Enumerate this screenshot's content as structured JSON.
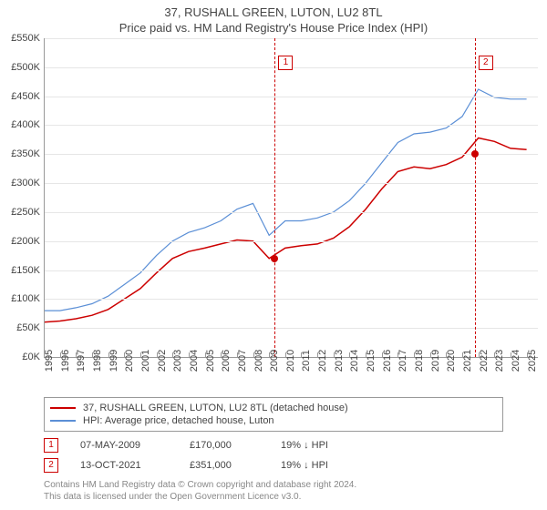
{
  "title_line1": "37, RUSHALL GREEN, LUTON, LU2 8TL",
  "title_line2": "Price paid vs. HM Land Registry's House Price Index (HPI)",
  "chart": {
    "type": "line",
    "background_color": "#ffffff",
    "grid_color": "#e6e6e6",
    "axis_color": "#999999",
    "label_color": "#444444",
    "label_fontsize": 11,
    "ylim": [
      0,
      550
    ],
    "ytick_step": 50,
    "ytick_prefix": "£",
    "ytick_suffix": "K",
    "xlim": [
      1995,
      2025.7
    ],
    "xtick_step": 1,
    "xtick_rotation": -90,
    "xticks": [
      1995,
      1996,
      1997,
      1998,
      1999,
      2000,
      2001,
      2002,
      2003,
      2004,
      2005,
      2006,
      2007,
      2008,
      2009,
      2010,
      2011,
      2012,
      2013,
      2014,
      2015,
      2016,
      2017,
      2018,
      2019,
      2020,
      2021,
      2022,
      2023,
      2024,
      2025
    ],
    "series": [
      {
        "name": "37, RUSHALL GREEN, LUTON, LU2 8TL (detached house)",
        "color": "#cc0000",
        "line_width": 1.5,
        "points": [
          [
            1995,
            60
          ],
          [
            1996,
            62
          ],
          [
            1997,
            66
          ],
          [
            1998,
            72
          ],
          [
            1999,
            82
          ],
          [
            2000,
            100
          ],
          [
            2001,
            118
          ],
          [
            2002,
            145
          ],
          [
            2003,
            170
          ],
          [
            2004,
            182
          ],
          [
            2005,
            188
          ],
          [
            2006,
            195
          ],
          [
            2007,
            202
          ],
          [
            2008,
            200
          ],
          [
            2009,
            170
          ],
          [
            2010,
            188
          ],
          [
            2011,
            192
          ],
          [
            2012,
            195
          ],
          [
            2013,
            205
          ],
          [
            2014,
            225
          ],
          [
            2015,
            255
          ],
          [
            2016,
            290
          ],
          [
            2017,
            320
          ],
          [
            2018,
            328
          ],
          [
            2019,
            325
          ],
          [
            2020,
            332
          ],
          [
            2021,
            345
          ],
          [
            2022,
            378
          ],
          [
            2023,
            372
          ],
          [
            2024,
            360
          ],
          [
            2025,
            358
          ]
        ]
      },
      {
        "name": "HPI: Average price, detached house, Luton",
        "color": "#5b8fd6",
        "line_width": 1.2,
        "points": [
          [
            1995,
            80
          ],
          [
            1996,
            80
          ],
          [
            1997,
            85
          ],
          [
            1998,
            92
          ],
          [
            1999,
            105
          ],
          [
            2000,
            125
          ],
          [
            2001,
            145
          ],
          [
            2002,
            175
          ],
          [
            2003,
            200
          ],
          [
            2004,
            215
          ],
          [
            2005,
            223
          ],
          [
            2006,
            235
          ],
          [
            2007,
            255
          ],
          [
            2008,
            265
          ],
          [
            2009,
            210
          ],
          [
            2010,
            235
          ],
          [
            2011,
            235
          ],
          [
            2012,
            240
          ],
          [
            2013,
            250
          ],
          [
            2014,
            270
          ],
          [
            2015,
            300
          ],
          [
            2016,
            335
          ],
          [
            2017,
            370
          ],
          [
            2018,
            385
          ],
          [
            2019,
            388
          ],
          [
            2020,
            395
          ],
          [
            2021,
            415
          ],
          [
            2022,
            462
          ],
          [
            2023,
            448
          ],
          [
            2024,
            445
          ],
          [
            2025,
            445
          ]
        ]
      }
    ],
    "markers": [
      {
        "index": "1",
        "x": 2009.35,
        "label_y": 520,
        "dot_y": 170,
        "vline_color": "#cc0000",
        "box_color": "#cc0000",
        "dot_color": "#cc0000"
      },
      {
        "index": "2",
        "x": 2021.78,
        "label_y": 520,
        "dot_y": 351,
        "vline_color": "#cc0000",
        "box_color": "#cc0000",
        "dot_color": "#cc0000"
      }
    ]
  },
  "legend": {
    "border_color": "#999999",
    "items": [
      {
        "color": "#cc0000",
        "label": "37, RUSHALL GREEN, LUTON, LU2 8TL (detached house)"
      },
      {
        "color": "#5b8fd6",
        "label": "HPI: Average price, detached house, Luton"
      }
    ]
  },
  "sales": [
    {
      "index": "1",
      "date": "07-MAY-2009",
      "price": "£170,000",
      "hpi": "19% ↓ HPI"
    },
    {
      "index": "2",
      "date": "13-OCT-2021",
      "price": "£351,000",
      "hpi": "19% ↓ HPI"
    }
  ],
  "footer_line1": "Contains HM Land Registry data © Crown copyright and database right 2024.",
  "footer_line2": "This data is licensed under the Open Government Licence v3.0."
}
